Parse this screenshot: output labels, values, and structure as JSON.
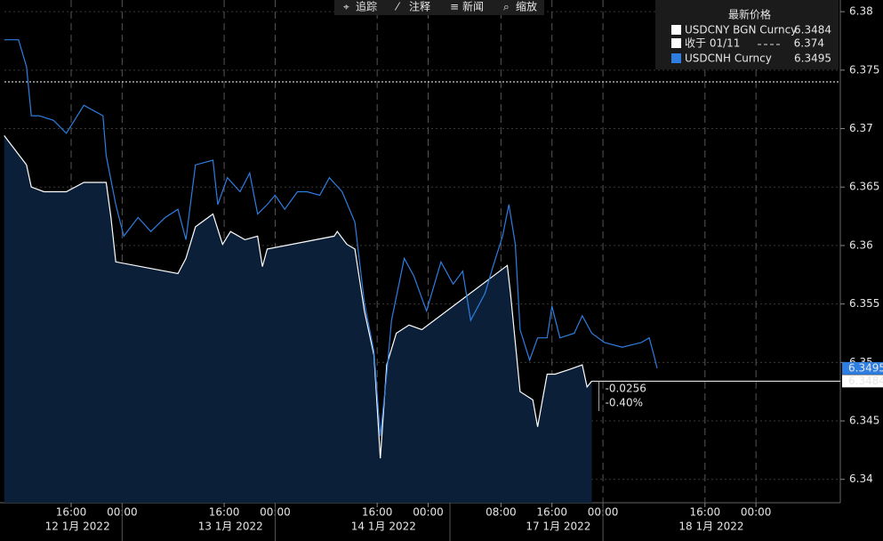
{
  "toolbar": [
    "追踪",
    "注释",
    "新闻",
    "缩放"
  ],
  "chart_data": {
    "type": "line",
    "legend_title": "最新价格",
    "ylim": [
      6.338,
      6.381
    ],
    "yticks": [
      6.34,
      6.345,
      6.35,
      6.355,
      6.36,
      6.365,
      6.37,
      6.375,
      6.38
    ],
    "grid": true,
    "xticks": [
      {
        "value": "2022-01-12 16:00",
        "label": "16:00"
      },
      {
        "value": "2022-01-13 00:00",
        "label": "00:00"
      },
      {
        "value": "2022-01-13 16:00",
        "label": "16:00"
      },
      {
        "value": "2022-01-14 00:00",
        "label": "00:00"
      },
      {
        "value": "2022-01-14 16:00",
        "label": "16:00"
      },
      {
        "value": "2022-01-15 00:00",
        "label": "00:00"
      },
      {
        "value": "2022-01-17 08:00",
        "label": "08:00"
      },
      {
        "value": "2022-01-17 16:00",
        "label": "16:00"
      },
      {
        "value": "2022-01-18 00:00",
        "label": "00:00"
      },
      {
        "value": "2022-01-18 16:00",
        "label": "16:00"
      },
      {
        "value": "2022-01-19 00:00",
        "label": "00:00"
      }
    ],
    "xgroups": [
      {
        "value": "2022-01-12",
        "label": "12 1月 2022"
      },
      {
        "value": "2022-01-13",
        "label": "13 1月 2022"
      },
      {
        "value": "2022-01-14",
        "label": "14 1月 2022"
      },
      {
        "value": "2022-01-17",
        "label": "17 1月 2022"
      },
      {
        "value": "2022-01-18",
        "label": "18 1月 2022"
      }
    ],
    "reference_line": {
      "name": "收于 01/11",
      "value": 6.374,
      "color": "#ffffff"
    },
    "annotations": [
      "-0.0256",
      "-0.40%"
    ],
    "series": [
      {
        "name": "USDCNY BGN Curncy",
        "color": "#ffffff",
        "fill": "#0b2038",
        "last": 6.3484,
        "x": [
          "2022-01-12 05:30",
          "2022-01-12 09:00",
          "2022-01-12 09:45",
          "2022-01-12 11:45",
          "2022-01-12 15:15",
          "2022-01-12 18:00",
          "2022-01-12 21:30",
          "2022-01-12 22:15",
          "2022-01-12 23:00",
          "2022-01-13 08:45",
          "2022-01-13 10:00",
          "2022-01-13 11:30",
          "2022-01-13 14:15",
          "2022-01-13 15:45",
          "2022-01-13 17:00",
          "2022-01-13 19:15",
          "2022-01-13 21:15",
          "2022-01-13 22:00",
          "2022-01-13 22:45",
          "2022-01-14 09:15",
          "2022-01-14 09:45",
          "2022-01-14 11:15",
          "2022-01-14 12:30",
          "2022-01-14 14:00",
          "2022-01-14 15:30",
          "2022-01-14 16:30",
          "2022-01-14 17:30",
          "2022-01-14 19:00",
          "2022-01-14 21:00",
          "2022-01-14 23:00",
          "2022-01-17 09:00",
          "2022-01-17 09:30",
          "2022-01-17 11:00",
          "2022-01-17 13:00",
          "2022-01-17 13:45",
          "2022-01-17 15:15",
          "2022-01-17 16:30",
          "2022-01-17 18:45",
          "2022-01-17 20:45",
          "2022-01-17 21:30",
          "2022-01-17 22:15"
        ],
        "values": [
          6.3694,
          6.3669,
          6.365,
          6.3646,
          6.3646,
          6.3654,
          6.3654,
          6.3624,
          6.3586,
          6.3576,
          6.3589,
          6.3616,
          6.3627,
          6.3601,
          6.3612,
          6.3605,
          6.3608,
          6.3582,
          6.3597,
          6.3608,
          6.3612,
          6.3601,
          6.3597,
          6.3544,
          6.3506,
          6.3418,
          6.3498,
          6.3525,
          6.3532,
          6.3528,
          6.3583,
          6.3559,
          6.3475,
          6.3468,
          6.3445,
          6.349,
          6.349,
          6.3494,
          6.3498,
          6.3479,
          6.3484
        ]
      },
      {
        "name": "USDCNH Curncy",
        "color": "#2e7de0",
        "last": 6.3495,
        "x": [
          "2022-01-12 05:30",
          "2022-01-12 07:45",
          "2022-01-12 09:00",
          "2022-01-12 09:45",
          "2022-01-12 11:00",
          "2022-01-12 13:15",
          "2022-01-12 15:15",
          "2022-01-12 18:00",
          "2022-01-12 21:00",
          "2022-01-12 21:30",
          "2022-01-12 23:00",
          "2022-01-13 00:15",
          "2022-01-13 02:30",
          "2022-01-13 04:30",
          "2022-01-13 06:45",
          "2022-01-13 08:45",
          "2022-01-13 10:00",
          "2022-01-13 11:30",
          "2022-01-13 14:15",
          "2022-01-13 15:00",
          "2022-01-13 16:30",
          "2022-01-13 18:30",
          "2022-01-13 20:00",
          "2022-01-13 21:15",
          "2022-01-13 22:45",
          "2022-01-14 00:00",
          "2022-01-14 01:30",
          "2022-01-14 03:30",
          "2022-01-14 05:00",
          "2022-01-14 07:00",
          "2022-01-14 08:30",
          "2022-01-14 10:30",
          "2022-01-14 12:30",
          "2022-01-14 14:00",
          "2022-01-14 15:30",
          "2022-01-14 16:30",
          "2022-01-14 17:30",
          "2022-01-14 18:15",
          "2022-01-14 20:15",
          "2022-01-14 21:45",
          "2022-01-14 23:00",
          "2022-01-14 23:45",
          "2022-01-15 02:00",
          "2022-01-17 00:30",
          "2022-01-17 02:00",
          "2022-01-17 03:15",
          "2022-01-17 05:30",
          "2022-01-17 06:45",
          "2022-01-17 08:15",
          "2022-01-17 09:15",
          "2022-01-17 10:15",
          "2022-01-17 11:00",
          "2022-01-17 12:30",
          "2022-01-17 13:45",
          "2022-01-17 15:15",
          "2022-01-17 16:00",
          "2022-01-17 17:15",
          "2022-01-17 19:30",
          "2022-01-17 20:45",
          "2022-01-17 22:15",
          "2022-01-18 00:15",
          "2022-01-18 03:00",
          "2022-01-18 06:00",
          "2022-01-18 07:15",
          "2022-01-18 08:00",
          "2022-01-18 08:30"
        ],
        "values": [
          6.3776,
          6.3776,
          6.3753,
          6.3711,
          6.3711,
          6.3707,
          6.3696,
          6.372,
          6.3711,
          6.3677,
          6.3635,
          6.3608,
          6.3624,
          6.3612,
          6.3624,
          6.3631,
          6.3605,
          6.3669,
          6.3673,
          6.3635,
          6.3658,
          6.3646,
          6.3662,
          6.3627,
          6.3635,
          6.3643,
          6.3631,
          6.3646,
          6.3646,
          6.3643,
          6.3658,
          6.3646,
          6.362,
          6.3551,
          6.3509,
          6.3437,
          6.349,
          6.3536,
          6.3589,
          6.3574,
          6.3555,
          6.3544,
          6.3586,
          6.3567,
          6.3578,
          6.3536,
          6.3559,
          6.3582,
          6.3608,
          6.3635,
          6.3601,
          6.3528,
          6.3502,
          6.3521,
          6.3521,
          6.3548,
          6.3521,
          6.3525,
          6.354,
          6.3525,
          6.3517,
          6.3513,
          6.3517,
          6.3521,
          6.3506,
          6.3495
        ]
      }
    ]
  }
}
